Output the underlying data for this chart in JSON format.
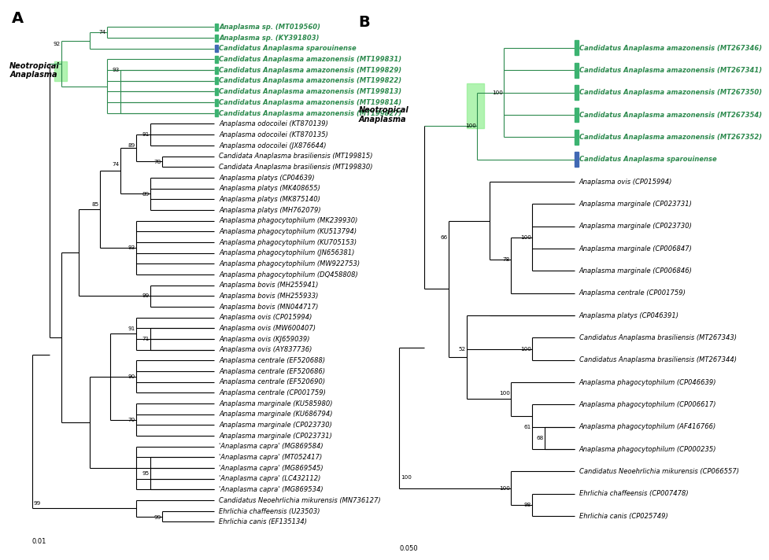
{
  "bg": "white",
  "GREEN": "#2d8a4e",
  "GSQ": "#3cb371",
  "BSQ": "#4169b4",
  "GBOX": "#90EE90",
  "lw": 0.8,
  "fs": 6.0,
  "fsb": 5.2,
  "panel_A_taxa": [
    {
      "n": "Anaplasma sp. (MT019560)",
      "b": true,
      "sq": "G"
    },
    {
      "n": "Anaplasma sp. (KY391803)",
      "b": true,
      "sq": "G"
    },
    {
      "n": "Candidatus Anaplasma sparouinense",
      "b": true,
      "sq": "B"
    },
    {
      "n": "Candidatus Anaplasma amazonensis (MT199831)",
      "b": true,
      "sq": "G"
    },
    {
      "n": "Candidatus Anaplasma amazonensis (MT199829)",
      "b": true,
      "sq": "G"
    },
    {
      "n": "Candidatus Anaplasma amazonensis (MT199822)",
      "b": true,
      "sq": "G"
    },
    {
      "n": "Candidatus Anaplasma amazonensis (MT199813)",
      "b": true,
      "sq": "G"
    },
    {
      "n": "Candidatus Anaplasma amazonensis (MT199814)",
      "b": true,
      "sq": "G"
    },
    {
      "n": "Candidatus Anaplasma amazonensis (MT199827)",
      "b": true,
      "sq": "G"
    },
    {
      "n": "Anaplasma odocoilei (KT870139)",
      "b": false,
      "sq": null
    },
    {
      "n": "Anaplasma odocoilei (KT870135)",
      "b": false,
      "sq": null
    },
    {
      "n": "Anaplasma odocoilei (JX876644)",
      "b": false,
      "sq": null
    },
    {
      "n": "Candidata Anaplasma brasiliensis (MT199815)",
      "b": false,
      "sq": null
    },
    {
      "n": "Candidata Anaplasma brasiliensis (MT199830)",
      "b": false,
      "sq": null
    },
    {
      "n": "Anaplasma platys (CP04639)",
      "b": false,
      "sq": null
    },
    {
      "n": "Anaplasma platys (MK408655)",
      "b": false,
      "sq": null
    },
    {
      "n": "Anaplasma platys (MK875140)",
      "b": false,
      "sq": null
    },
    {
      "n": "Anaplasma platys (MH762079)",
      "b": false,
      "sq": null
    },
    {
      "n": "Anaplasma phagocytophilum (MK239930)",
      "b": false,
      "sq": null
    },
    {
      "n": "Anaplasma phagocytophilum (KU513794)",
      "b": false,
      "sq": null
    },
    {
      "n": "Anaplasma phagocytophilum (KU705153)",
      "b": false,
      "sq": null
    },
    {
      "n": "Anaplasma phagocytophilum (JN656381)",
      "b": false,
      "sq": null
    },
    {
      "n": "Anaplasma phagocytophilum (MW922753)",
      "b": false,
      "sq": null
    },
    {
      "n": "Anaplasma phagocytophilum (DQ458808)",
      "b": false,
      "sq": null
    },
    {
      "n": "Anaplasma bovis (MH255941)",
      "b": false,
      "sq": null
    },
    {
      "n": "Anaplasma bovis (MH255933)",
      "b": false,
      "sq": null
    },
    {
      "n": "Anaplasma bovis (MN044717)",
      "b": false,
      "sq": null
    },
    {
      "n": "Anaplasma ovis (CP015994)",
      "b": false,
      "sq": null
    },
    {
      "n": "Anaplasma ovis (MW600407)",
      "b": false,
      "sq": null
    },
    {
      "n": "Anaplasma ovis (KJ659039)",
      "b": false,
      "sq": null
    },
    {
      "n": "Anaplasma ovis (AY837736)",
      "b": false,
      "sq": null
    },
    {
      "n": "Anaplasma centrale (EF520688)",
      "b": false,
      "sq": null
    },
    {
      "n": "Anaplasma centrale (EF520686)",
      "b": false,
      "sq": null
    },
    {
      "n": "Anaplasma centrale (EF520690)",
      "b": false,
      "sq": null
    },
    {
      "n": "Anaplasma centrale (CP001759)",
      "b": false,
      "sq": null
    },
    {
      "n": "Anaplasma marginale (KU585980)",
      "b": false,
      "sq": null
    },
    {
      "n": "Anaplasma marginale (KU686794)",
      "b": false,
      "sq": null
    },
    {
      "n": "Anaplasma marginale (CP023730)",
      "b": false,
      "sq": null
    },
    {
      "n": "Anaplasma marginale (CP023731)",
      "b": false,
      "sq": null
    },
    {
      "n": "'Anaplasma capra' (MG869584)",
      "b": false,
      "sq": null
    },
    {
      "n": "'Anaplasma capra' (MT052417)",
      "b": false,
      "sq": null
    },
    {
      "n": "'Anaplasma capra' (MG869545)",
      "b": false,
      "sq": null
    },
    {
      "n": "'Anaplasma capra' (LC432112)",
      "b": false,
      "sq": null
    },
    {
      "n": "'Anaplasma capra' (MG869534)",
      "b": false,
      "sq": null
    },
    {
      "n": "Candidatus Neoehrlichia mikurensis (MN736127)",
      "b": false,
      "sq": null
    },
    {
      "n": "Ehrlichia chaffeensis (U23503)",
      "b": false,
      "sq": null
    },
    {
      "n": "Ehrlichia canis (EF135134)",
      "b": false,
      "sq": null
    }
  ],
  "panel_B_taxa": [
    {
      "n": "Candidatus Anaplasma amazonensis (MT267346)",
      "b": true,
      "sq": "G"
    },
    {
      "n": "Candidatus Anaplasma amazonensis (MT267341)",
      "b": true,
      "sq": "G"
    },
    {
      "n": "Candidatus Anaplasma amazonensis (MT267350)",
      "b": true,
      "sq": "G"
    },
    {
      "n": "Candidatus Anaplasma amazonensis (MT267354)",
      "b": true,
      "sq": "G"
    },
    {
      "n": "Candidatus Anaplasma amazonensis (MT267352)",
      "b": true,
      "sq": "G"
    },
    {
      "n": "Candidatus Anaplasma sparouinense",
      "b": true,
      "sq": "B"
    },
    {
      "n": "Anaplasma ovis (CP015994)",
      "b": false,
      "sq": null
    },
    {
      "n": "Anaplasma marginale (CP023731)",
      "b": false,
      "sq": null
    },
    {
      "n": "Anaplasma marginale (CP023730)",
      "b": false,
      "sq": null
    },
    {
      "n": "Anaplasma marginale (CP006847)",
      "b": false,
      "sq": null
    },
    {
      "n": "Anaplasma marginale (CP006846)",
      "b": false,
      "sq": null
    },
    {
      "n": "Anaplasma centrale (CP001759)",
      "b": false,
      "sq": null
    },
    {
      "n": "Anaplasma platys (CP046391)",
      "b": false,
      "sq": null
    },
    {
      "n": "Candidatus Anaplasma brasiliensis (MT267343)",
      "b": false,
      "sq": null
    },
    {
      "n": "Candidatus Anaplasma brasiliensis (MT267344)",
      "b": false,
      "sq": null
    },
    {
      "n": "Anaplasma phagocytophilum (CP046639)",
      "b": false,
      "sq": null
    },
    {
      "n": "Anaplasma phagocytophilum (CP006617)",
      "b": false,
      "sq": null
    },
    {
      "n": "Anaplasma phagocytophilum (AF416766)",
      "b": false,
      "sq": null
    },
    {
      "n": "Anaplasma phagocytophilum (CP000235)",
      "b": false,
      "sq": null
    },
    {
      "n": "Candidatus Neoehrlichia mikurensis (CP066557)",
      "b": false,
      "sq": null
    },
    {
      "n": "Ehrlichia chaffeensis (CP007478)",
      "b": false,
      "sq": null
    },
    {
      "n": "Ehrlichia canis (CP025749)",
      "b": false,
      "sq": null
    }
  ]
}
